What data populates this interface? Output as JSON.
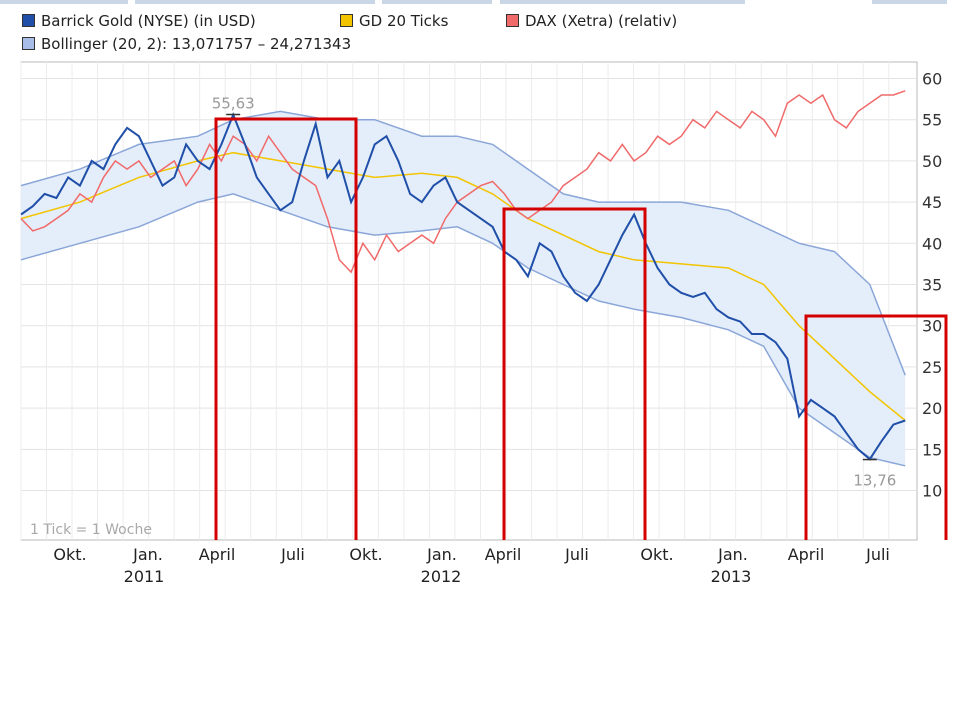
{
  "legend": [
    {
      "label": "Barrick Gold (NYSE) (in USD)",
      "color": "#1f4fa8"
    },
    {
      "label": "GD 20 Ticks",
      "color": "#f2c500"
    },
    {
      "label": "DAX (Xetra) (relativ)",
      "color": "#f06a6a"
    },
    {
      "label": "Bollinger (20, 2): 13,071757 – 24,271343",
      "color": "#a8bde8"
    }
  ],
  "chart_data": {
    "type": "line",
    "x_unit": "weeks since start of chart (1 Tick = 1 Woche)",
    "ylim": [
      4,
      62
    ],
    "yticks": [
      10,
      15,
      20,
      25,
      30,
      35,
      40,
      45,
      50,
      55,
      60
    ],
    "y_axis_side": "right",
    "month_labels": [
      "Okt.",
      "Jan.",
      "April",
      "Juli",
      "Okt.",
      "Jan.",
      "April",
      "Juli",
      "Okt.",
      "Jan.",
      "April",
      "Juli"
    ],
    "year_labels": [
      "2011",
      "2012",
      "2013"
    ],
    "note": "1 Tick = 1 Woche",
    "annotations": [
      {
        "text": "55,63",
        "value": 55.63
      },
      {
        "text": "13,76",
        "value": 13.76
      }
    ],
    "series": [
      {
        "name": "Barrick Gold (NYSE) (in USD)",
        "color": "#1f4fa8",
        "points": [
          [
            0,
            43.5
          ],
          [
            2,
            44.5
          ],
          [
            4,
            46
          ],
          [
            6,
            45.5
          ],
          [
            8,
            48
          ],
          [
            10,
            47
          ],
          [
            12,
            50
          ],
          [
            14,
            49
          ],
          [
            16,
            52
          ],
          [
            18,
            54
          ],
          [
            20,
            53
          ],
          [
            22,
            50
          ],
          [
            24,
            47
          ],
          [
            26,
            48
          ],
          [
            28,
            52
          ],
          [
            30,
            50
          ],
          [
            32,
            49
          ],
          [
            34,
            52
          ],
          [
            36,
            55.6
          ],
          [
            38,
            52
          ],
          [
            40,
            48
          ],
          [
            42,
            46
          ],
          [
            44,
            44
          ],
          [
            46,
            45
          ],
          [
            48,
            50
          ],
          [
            50,
            54.5
          ],
          [
            52,
            48
          ],
          [
            54,
            50
          ],
          [
            56,
            45
          ],
          [
            58,
            48
          ],
          [
            60,
            52
          ],
          [
            62,
            53
          ],
          [
            64,
            50
          ],
          [
            66,
            46
          ],
          [
            68,
            45
          ],
          [
            70,
            47
          ],
          [
            72,
            48
          ],
          [
            74,
            45
          ],
          [
            76,
            44
          ],
          [
            78,
            43
          ],
          [
            80,
            42
          ],
          [
            82,
            39
          ],
          [
            84,
            38
          ],
          [
            86,
            36
          ],
          [
            88,
            40
          ],
          [
            90,
            39
          ],
          [
            92,
            36
          ],
          [
            94,
            34
          ],
          [
            96,
            33
          ],
          [
            98,
            35
          ],
          [
            100,
            38
          ],
          [
            102,
            41
          ],
          [
            104,
            43.5
          ],
          [
            106,
            40
          ],
          [
            108,
            37
          ],
          [
            110,
            35
          ],
          [
            112,
            34
          ],
          [
            114,
            33.5
          ],
          [
            116,
            34
          ],
          [
            118,
            32
          ],
          [
            120,
            31
          ],
          [
            122,
            30.5
          ],
          [
            124,
            29
          ],
          [
            126,
            29
          ],
          [
            128,
            28
          ],
          [
            130,
            26
          ],
          [
            132,
            19
          ],
          [
            134,
            21
          ],
          [
            136,
            20
          ],
          [
            138,
            19
          ],
          [
            140,
            17
          ],
          [
            142,
            15
          ],
          [
            144,
            13.8
          ],
          [
            146,
            16
          ],
          [
            148,
            18
          ],
          [
            150,
            18.5
          ]
        ]
      },
      {
        "name": "GD 20 Ticks",
        "color": "#f2c500",
        "points": [
          [
            0,
            43
          ],
          [
            10,
            45
          ],
          [
            20,
            48
          ],
          [
            30,
            50
          ],
          [
            36,
            51
          ],
          [
            44,
            50
          ],
          [
            52,
            49
          ],
          [
            60,
            48
          ],
          [
            68,
            48.5
          ],
          [
            74,
            48
          ],
          [
            80,
            46
          ],
          [
            86,
            43
          ],
          [
            92,
            41
          ],
          [
            98,
            39
          ],
          [
            104,
            38
          ],
          [
            112,
            37.5
          ],
          [
            120,
            37
          ],
          [
            126,
            35
          ],
          [
            132,
            30
          ],
          [
            138,
            26
          ],
          [
            144,
            22
          ],
          [
            150,
            18.5
          ]
        ]
      },
      {
        "name": "DAX (Xetra) (relativ)",
        "color": "#f06a6a",
        "points": [
          [
            0,
            43
          ],
          [
            2,
            41.5
          ],
          [
            4,
            42
          ],
          [
            6,
            43
          ],
          [
            8,
            44
          ],
          [
            10,
            46
          ],
          [
            12,
            45
          ],
          [
            14,
            48
          ],
          [
            16,
            50
          ],
          [
            18,
            49
          ],
          [
            20,
            50
          ],
          [
            22,
            48
          ],
          [
            24,
            49
          ],
          [
            26,
            50
          ],
          [
            28,
            47
          ],
          [
            30,
            49
          ],
          [
            32,
            52
          ],
          [
            34,
            50
          ],
          [
            36,
            53
          ],
          [
            38,
            52
          ],
          [
            40,
            50
          ],
          [
            42,
            53
          ],
          [
            44,
            51
          ],
          [
            46,
            49
          ],
          [
            48,
            48
          ],
          [
            50,
            47
          ],
          [
            52,
            43
          ],
          [
            54,
            38
          ],
          [
            56,
            36.5
          ],
          [
            58,
            40
          ],
          [
            60,
            38
          ],
          [
            62,
            41
          ],
          [
            64,
            39
          ],
          [
            66,
            40
          ],
          [
            68,
            41
          ],
          [
            70,
            40
          ],
          [
            72,
            43
          ],
          [
            74,
            45
          ],
          [
            76,
            46
          ],
          [
            78,
            47
          ],
          [
            80,
            47.5
          ],
          [
            82,
            46
          ],
          [
            84,
            44
          ],
          [
            86,
            43
          ],
          [
            88,
            44
          ],
          [
            90,
            45
          ],
          [
            92,
            47
          ],
          [
            94,
            48
          ],
          [
            96,
            49
          ],
          [
            98,
            51
          ],
          [
            100,
            50
          ],
          [
            102,
            52
          ],
          [
            104,
            50
          ],
          [
            106,
            51
          ],
          [
            108,
            53
          ],
          [
            110,
            52
          ],
          [
            112,
            53
          ],
          [
            114,
            55
          ],
          [
            116,
            54
          ],
          [
            118,
            56
          ],
          [
            120,
            55
          ],
          [
            122,
            54
          ],
          [
            124,
            56
          ],
          [
            126,
            55
          ],
          [
            128,
            53
          ],
          [
            130,
            57
          ],
          [
            132,
            58
          ],
          [
            134,
            57
          ],
          [
            136,
            58
          ],
          [
            138,
            55
          ],
          [
            140,
            54
          ],
          [
            142,
            56
          ],
          [
            144,
            57
          ],
          [
            146,
            58
          ],
          [
            148,
            58
          ],
          [
            150,
            58.5
          ]
        ]
      },
      {
        "name": "Bollinger upper",
        "color": "#8aa6d8",
        "points": [
          [
            0,
            47
          ],
          [
            10,
            49
          ],
          [
            20,
            52
          ],
          [
            30,
            53
          ],
          [
            36,
            55
          ],
          [
            44,
            56
          ],
          [
            52,
            55
          ],
          [
            60,
            55
          ],
          [
            68,
            53
          ],
          [
            74,
            53
          ],
          [
            80,
            52
          ],
          [
            86,
            49
          ],
          [
            92,
            46
          ],
          [
            98,
            45
          ],
          [
            104,
            45
          ],
          [
            112,
            45
          ],
          [
            120,
            44
          ],
          [
            126,
            42
          ],
          [
            132,
            40
          ],
          [
            138,
            39
          ],
          [
            144,
            35
          ],
          [
            150,
            24
          ]
        ]
      },
      {
        "name": "Bollinger lower",
        "color": "#8aa6d8",
        "points": [
          [
            0,
            38
          ],
          [
            10,
            40
          ],
          [
            20,
            42
          ],
          [
            30,
            45
          ],
          [
            36,
            46
          ],
          [
            44,
            44
          ],
          [
            52,
            42
          ],
          [
            60,
            41
          ],
          [
            68,
            41.5
          ],
          [
            74,
            42
          ],
          [
            80,
            40
          ],
          [
            86,
            37
          ],
          [
            92,
            35
          ],
          [
            98,
            33
          ],
          [
            104,
            32
          ],
          [
            112,
            31
          ],
          [
            120,
            29.5
          ],
          [
            126,
            27.5
          ],
          [
            132,
            20
          ],
          [
            138,
            17
          ],
          [
            144,
            14
          ],
          [
            150,
            13
          ]
        ]
      }
    ]
  }
}
